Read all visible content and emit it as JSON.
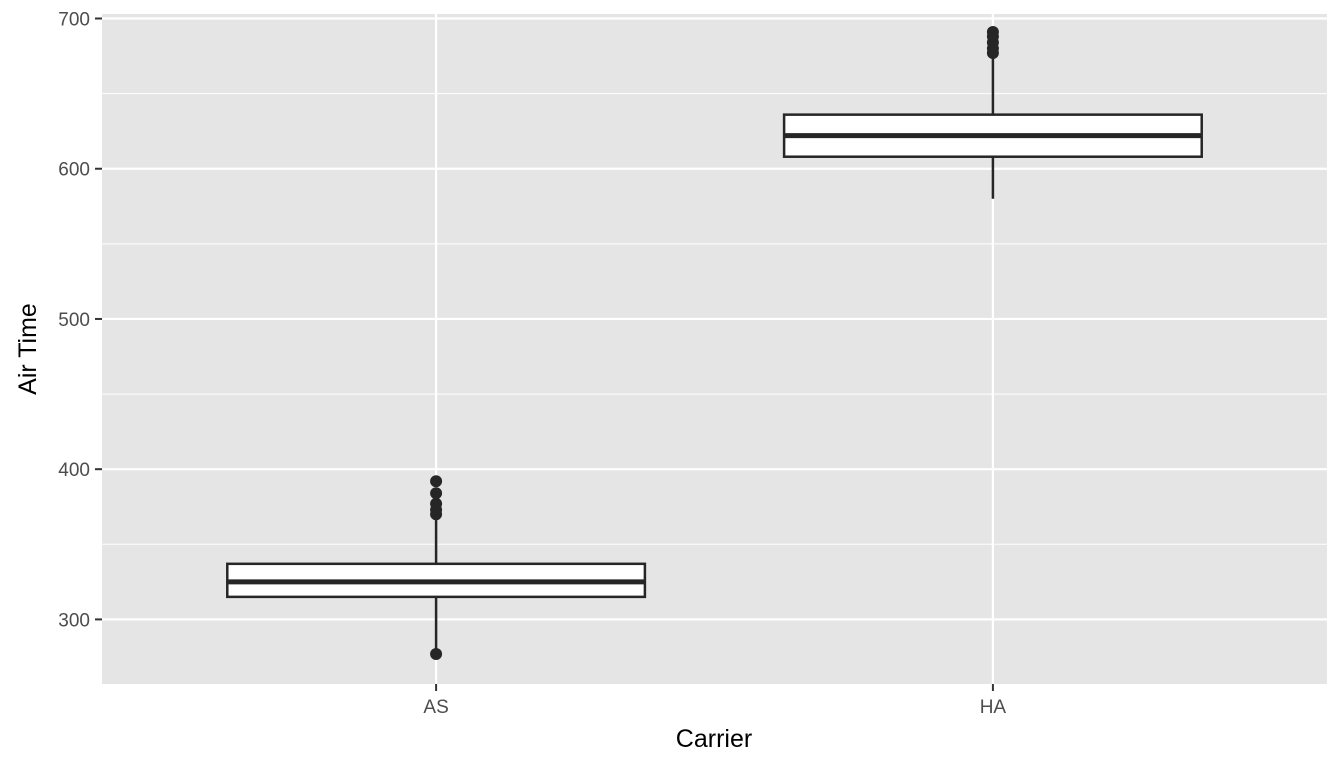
{
  "chart_data": {
    "type": "boxplot",
    "title": "",
    "xlabel": "Carrier",
    "ylabel": "Air Time",
    "ylim": [
      257,
      703
    ],
    "y_ticks": [
      300,
      400,
      500,
      600,
      700
    ],
    "grid": true,
    "legend": "none",
    "colors": {
      "panel": "#e5e5e5",
      "grid": "#ffffff",
      "box_fill": "#ffffff",
      "box_line": "#262626",
      "tick_text": "#4d4d4d"
    },
    "categories": [
      "AS",
      "HA"
    ],
    "boxes": [
      {
        "category": "AS",
        "whisker_low": 277,
        "q1": 315,
        "median": 325,
        "q3": 337,
        "whisker_high": 368,
        "outliers": [
          277,
          370,
          373,
          377,
          384,
          392
        ]
      },
      {
        "category": "HA",
        "whisker_low": 580,
        "q1": 608,
        "median": 622,
        "q3": 636,
        "whisker_high": 675,
        "outliers": [
          677,
          680,
          684,
          688,
          691
        ]
      }
    ]
  }
}
